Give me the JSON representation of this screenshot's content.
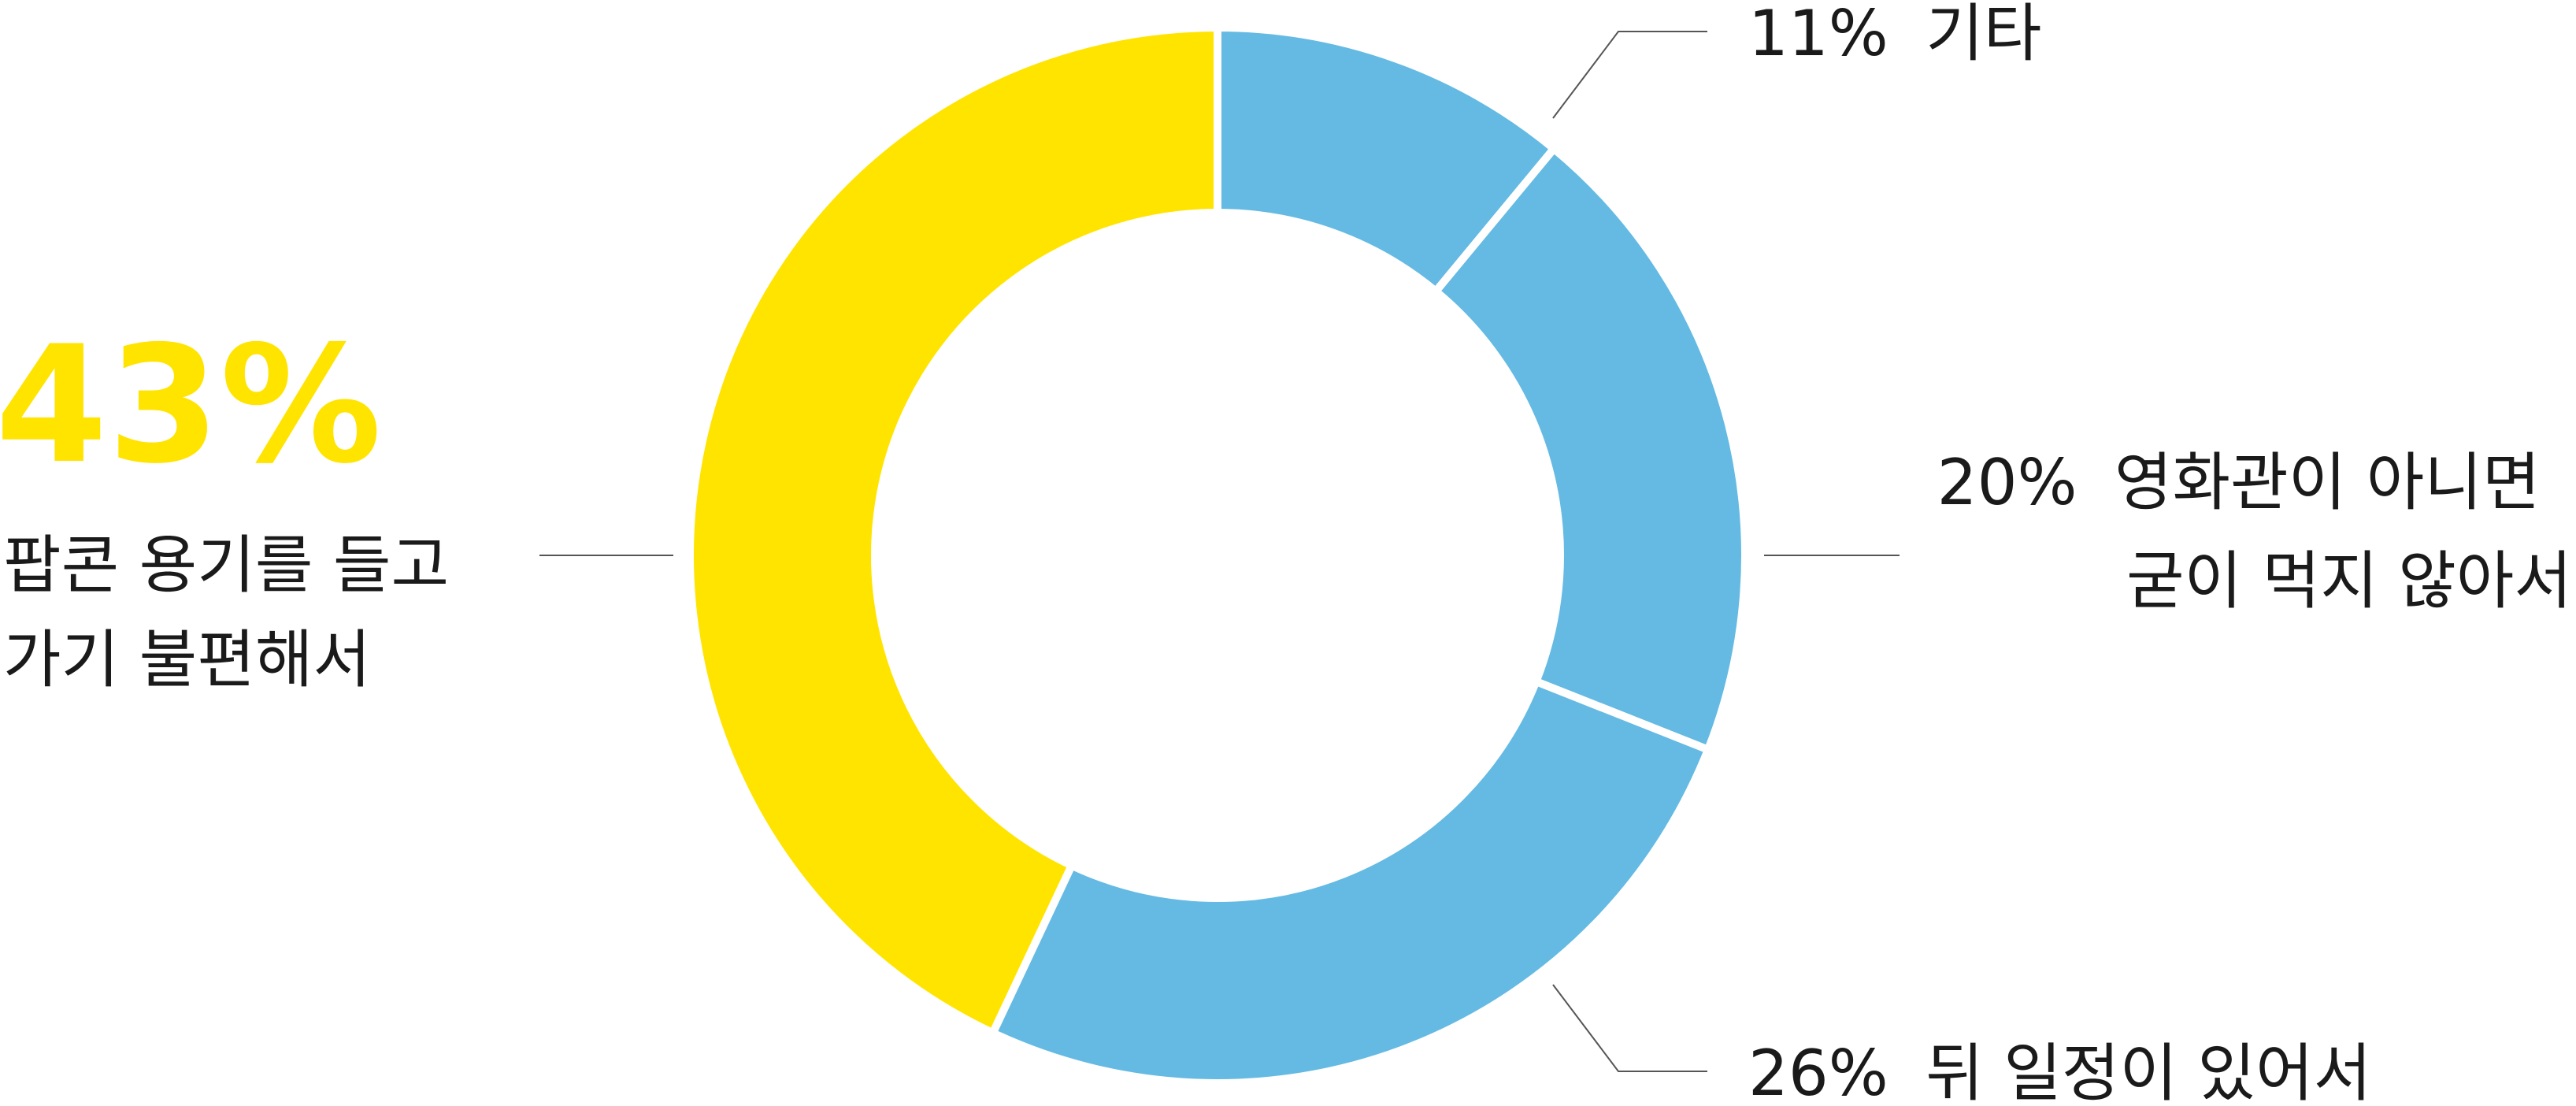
{
  "chart_data": {
    "type": "pie",
    "donut": true,
    "title": "",
    "slices": [
      {
        "value": 11,
        "percent_label": "11%",
        "label_lines": [
          "기타"
        ],
        "color": "#64bae3"
      },
      {
        "value": 20,
        "percent_label": "20%",
        "label_lines": [
          "영화관이 아니면",
          "굳이 먹지 않아서"
        ],
        "color": "#64bae3"
      },
      {
        "value": 26,
        "percent_label": "26%",
        "label_lines": [
          "뒤 일정이 있어서"
        ],
        "color": "#64bae3"
      },
      {
        "value": 43,
        "percent_label": "43%",
        "label_lines": [
          "팝콘 용기를 들고",
          "가기 불편해서"
        ],
        "color": "#ffe400"
      }
    ],
    "start_angle_deg": 0,
    "direction": "clockwise",
    "colors": {
      "highlight": "#ffe400",
      "other": "#64bae3",
      "text": "#1a1a1a",
      "leader": "#555555"
    }
  }
}
